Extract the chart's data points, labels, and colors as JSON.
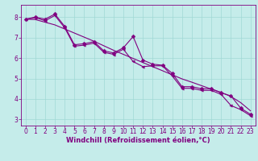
{
  "xlabel": "Windchill (Refroidissement éolien,°C)",
  "xlim": [
    -0.5,
    23.5
  ],
  "ylim": [
    2.7,
    8.6
  ],
  "background_color": "#c5ecea",
  "line_color": "#800080",
  "grid_color": "#a0d8d5",
  "x_ticks": [
    0,
    1,
    2,
    3,
    4,
    5,
    6,
    7,
    8,
    9,
    10,
    11,
    12,
    13,
    14,
    15,
    16,
    17,
    18,
    19,
    20,
    21,
    22,
    23
  ],
  "y_ticks": [
    3,
    4,
    5,
    6,
    7,
    8
  ],
  "line1_y": [
    7.9,
    8.0,
    7.9,
    8.15,
    7.55,
    6.65,
    6.7,
    6.8,
    6.35,
    6.25,
    6.5,
    7.05,
    5.9,
    5.7,
    5.65,
    5.25,
    4.6,
    4.6,
    4.5,
    4.5,
    4.3,
    4.15,
    3.55,
    3.25
  ],
  "line2_y": [
    7.9,
    7.88,
    7.75,
    7.62,
    7.42,
    7.22,
    7.02,
    6.82,
    6.6,
    6.38,
    6.18,
    5.98,
    5.78,
    5.58,
    5.38,
    5.18,
    4.98,
    4.82,
    4.65,
    4.48,
    4.32,
    4.12,
    3.82,
    3.42
  ],
  "line3_y": [
    7.88,
    7.98,
    7.82,
    8.08,
    7.48,
    6.58,
    6.63,
    6.73,
    6.28,
    6.18,
    6.43,
    5.83,
    5.58,
    5.62,
    5.62,
    5.12,
    4.52,
    4.52,
    4.42,
    4.42,
    4.22,
    3.68,
    3.48,
    3.18
  ],
  "tick_fontsize": 5.5,
  "label_fontsize": 6.0,
  "line_width": 0.8,
  "marker_size": 2.5
}
